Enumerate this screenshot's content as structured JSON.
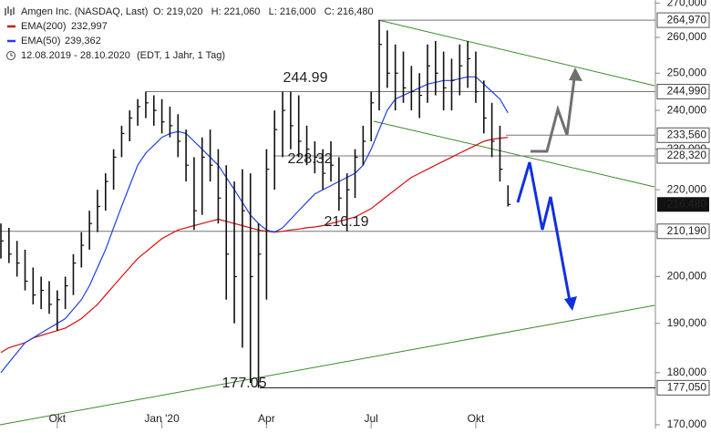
{
  "chart_data": {
    "type": "ohlc",
    "title": "Amgen Inc. (NASDAQ, Last)",
    "header_stats": "O: 219,020   H: 221,060   L: 216,000   C: 216,480",
    "period": "12.08.2019 - 28.10.2020",
    "period_note": "(EDT, 1 Jahr, 1 Tag)",
    "categories": [
      null,
      null,
      null,
      null,
      null,
      null,
      null,
      "Okt",
      null,
      null,
      null,
      null,
      null,
      null,
      null,
      null,
      null,
      null,
      null,
      null,
      "Jan '20",
      null,
      null,
      null,
      null,
      null,
      null,
      null,
      null,
      null,
      null,
      null,
      null,
      "Apr",
      null,
      null,
      null,
      null,
      null,
      null,
      null,
      null,
      null,
      null,
      null,
      null,
      "Jul",
      null,
      null,
      null,
      null,
      null,
      null,
      null,
      null,
      null,
      null,
      null,
      null,
      "Okt",
      null,
      null,
      null,
      null
    ],
    "high": [
      212,
      211,
      208,
      206,
      202,
      200,
      199,
      197,
      200,
      205,
      210,
      215,
      220,
      224,
      230,
      236,
      240,
      243,
      244.99,
      244,
      243,
      241,
      239,
      235,
      228,
      233,
      235,
      230,
      226,
      222,
      225,
      224,
      212,
      230,
      240,
      245,
      245,
      244,
      236,
      232,
      230,
      232,
      228,
      224,
      230,
      236,
      245,
      264.97,
      262,
      258,
      256,
      252,
      250,
      258,
      259,
      256,
      254,
      258,
      259,
      256,
      248,
      242,
      236,
      221.06
    ],
    "low": [
      204,
      203,
      200,
      197,
      194,
      193,
      192,
      188.5,
      193,
      196,
      202,
      206,
      210,
      215,
      220,
      228,
      232,
      236,
      238,
      236,
      234,
      233,
      228,
      222,
      210.5,
      214,
      222,
      212,
      195,
      190,
      185,
      178,
      177.05,
      195,
      220,
      228,
      230,
      228,
      226,
      224,
      220,
      222,
      215,
      210.19,
      218,
      226,
      232,
      240,
      246,
      240,
      242,
      240,
      238,
      242,
      244,
      240,
      240,
      244,
      246,
      242,
      234,
      228,
      222,
      216
    ],
    "close": [
      208,
      205,
      203,
      199,
      196,
      197,
      194,
      195,
      198,
      203,
      207,
      212,
      216,
      222,
      228,
      234,
      238,
      241,
      242,
      240,
      237,
      236,
      232,
      226,
      215,
      228,
      226,
      218,
      205,
      200,
      215,
      200,
      205,
      225,
      235,
      240,
      236,
      232,
      230,
      228,
      224,
      226,
      218,
      220,
      228,
      232,
      242,
      258,
      250,
      250,
      246,
      245,
      244,
      252,
      250,
      246,
      248,
      252,
      254,
      245,
      238,
      232,
      225,
      216.48
    ],
    "bar_color": "#111111",
    "series": [
      {
        "name": "EMA(200)",
        "color": "#d01010",
        "last_label": "232,997",
        "values": [
          184,
          185,
          185.5,
          186,
          187,
          187.5,
          188,
          188.5,
          189,
          190,
          191,
          192.5,
          194,
          196,
          198,
          200,
          202,
          204,
          205.5,
          207,
          208.5,
          209.5,
          210.5,
          211,
          211.5,
          212,
          212.5,
          213,
          212.5,
          212,
          211.5,
          211,
          210.5,
          210.2,
          210,
          210.2,
          210.5,
          210.7,
          211,
          211.2,
          211.5,
          212,
          212.5,
          213,
          213.5,
          214.5,
          215.5,
          217,
          218.5,
          220,
          221.5,
          223,
          224,
          225,
          226,
          227,
          228,
          229,
          230,
          231,
          232,
          232.5,
          232.8,
          232.997
        ]
      },
      {
        "name": "EMA(50)",
        "color": "#2040e0",
        "last_label": "239,362",
        "values": [
          180,
          182,
          184,
          186,
          187,
          188,
          189,
          190,
          191,
          193,
          195,
          198,
          202,
          206,
          211,
          216,
          221,
          226,
          229,
          231,
          233,
          234,
          234.5,
          234,
          232,
          230,
          228,
          226,
          223,
          220,
          217,
          214,
          212,
          210.5,
          210,
          211,
          213,
          215,
          217,
          219,
          220,
          221,
          222,
          223,
          224,
          226,
          230,
          235,
          240,
          243,
          244,
          245,
          246,
          247,
          247.5,
          248,
          248,
          248.5,
          249,
          249,
          247,
          245,
          243,
          239.362
        ]
      }
    ],
    "log_scale": true,
    "ylim": [
      170,
      270
    ],
    "yticks": [
      {
        "value": 170,
        "label": "170,000"
      },
      {
        "value": 180,
        "label": "180,000"
      },
      {
        "value": 190,
        "label": "190,000"
      },
      {
        "value": 200,
        "label": "200,000"
      },
      {
        "value": 210,
        "label": "210,000"
      },
      {
        "value": 220,
        "label": "220,000"
      },
      {
        "value": 230,
        "label": "230,000"
      },
      {
        "value": 240,
        "label": "240,000"
      },
      {
        "value": 250,
        "label": "250,000"
      },
      {
        "value": 260,
        "label": "260,000"
      },
      {
        "value": 270,
        "label": "270,000"
      }
    ],
    "levels": [
      {
        "value": 264.97,
        "label": "264,970"
      },
      {
        "value": 244.99,
        "label": "244,990"
      },
      {
        "value": 233.56,
        "label": "233,560"
      },
      {
        "value": 228.32,
        "label": "228,320"
      },
      {
        "value": 210.19,
        "label": "210,190"
      },
      {
        "value": 177.05,
        "label": "177,050"
      }
    ],
    "last_price": {
      "value": 216.48,
      "label": "216,480"
    },
    "annotations": [
      "244.99",
      "228.32",
      "210.19",
      "177.05"
    ]
  }
}
